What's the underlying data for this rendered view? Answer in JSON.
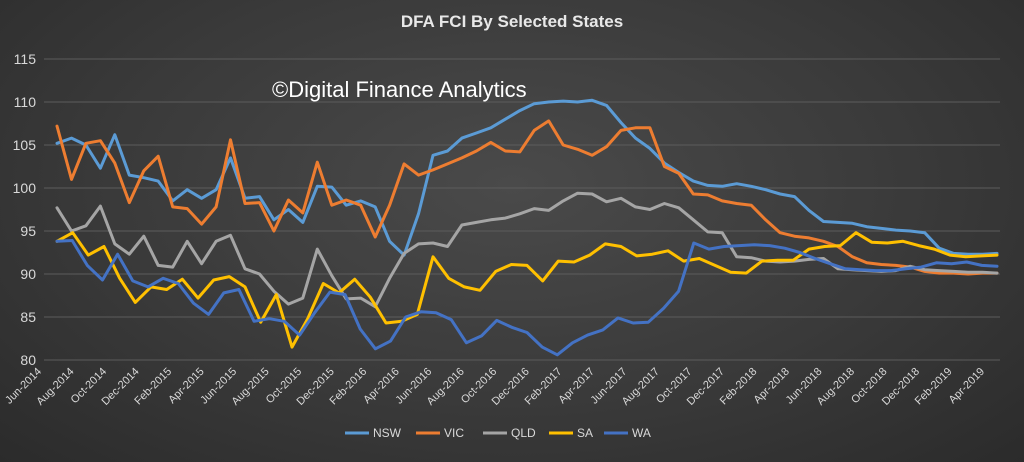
{
  "chart_data": {
    "type": "line",
    "title": "DFA FCI By Selected States",
    "watermark": "©Digital Finance Analytics",
    "xlabel": "",
    "ylabel": "",
    "ylim": [
      80,
      115
    ],
    "yticks": [
      80,
      85,
      90,
      95,
      100,
      105,
      110,
      115
    ],
    "grid": true,
    "legend_position": "bottom",
    "x_tick_labels": [
      "Jun-2014",
      "Aug-2014",
      "Oct-2014",
      "Dec-2014",
      "Feb-2015",
      "Apr-2015",
      "Jun-2015",
      "Aug-2015",
      "Oct-2015",
      "Dec-2015",
      "Feb-2016",
      "Apr-2016",
      "Jun-2016",
      "Aug-2016",
      "Oct-2016",
      "Dec-2016",
      "Feb-2017",
      "Apr-2017",
      "Jun-2017",
      "Aug-2017",
      "Oct-2017",
      "Dec-2017",
      "Feb-2018",
      "Apr-2018",
      "Jun-2018",
      "Aug-2018",
      "Oct-2018",
      "Dec-2018",
      "Feb-2019",
      "Apr-2019"
    ],
    "series": [
      {
        "name": "NSW",
        "color": "#5b9bd5",
        "values": [
          105.2,
          105.8,
          105.0,
          102.3,
          106.2,
          101.5,
          101.2,
          100.8,
          98.5,
          99.8,
          98.8,
          99.8,
          103.5,
          98.8,
          99.0,
          96.3,
          97.5,
          96.0,
          100.2,
          100.1,
          98.0,
          98.5,
          97.8,
          93.8,
          92.2,
          97.0,
          103.8,
          104.3,
          105.8,
          106.4,
          107.0,
          108.0,
          109.0,
          109.8,
          110.0,
          110.1,
          110.0,
          110.2,
          109.6,
          107.6,
          105.8,
          104.6,
          102.9,
          101.8,
          100.8,
          100.3,
          100.2,
          100.5,
          100.2,
          99.8,
          99.3,
          99.0,
          97.4,
          96.1,
          96.0,
          95.9,
          95.5,
          95.3,
          95.1,
          95.0,
          94.8,
          93.0,
          92.4,
          92.3,
          92.3,
          92.4
        ]
      },
      {
        "name": "VIC",
        "color": "#ed7d31",
        "values": [
          107.2,
          101.0,
          105.2,
          105.5,
          102.9,
          98.3,
          102.0,
          103.7,
          97.8,
          97.6,
          95.8,
          97.8,
          105.6,
          98.2,
          98.3,
          95.0,
          98.6,
          97.1,
          103.0,
          98.0,
          98.6,
          98.0,
          94.3,
          98.0,
          102.8,
          101.5,
          102.1,
          102.8,
          103.5,
          104.3,
          105.3,
          104.3,
          104.2,
          106.7,
          107.8,
          105.0,
          104.5,
          103.8,
          104.8,
          106.7,
          107.0,
          107.0,
          102.5,
          101.7,
          99.3,
          99.2,
          98.5,
          98.2,
          98.0,
          96.3,
          94.8,
          94.4,
          94.2,
          93.8,
          93.2,
          92.0,
          91.3,
          91.1,
          91.0,
          90.8,
          90.3,
          90.1,
          90.1,
          90.0,
          90.1,
          90.1
        ]
      },
      {
        "name": "QLD",
        "color": "#a5a5a5",
        "values": [
          97.7,
          95.0,
          95.6,
          97.9,
          93.5,
          92.3,
          94.4,
          91.0,
          90.8,
          93.8,
          91.2,
          93.8,
          94.5,
          90.6,
          90.0,
          88.0,
          86.5,
          87.2,
          92.9,
          89.8,
          87.1,
          87.2,
          86.2,
          89.5,
          92.4,
          93.5,
          93.6,
          93.2,
          95.7,
          96.0,
          96.3,
          96.5,
          97.0,
          97.6,
          97.4,
          98.5,
          99.4,
          99.3,
          98.4,
          98.8,
          97.8,
          97.5,
          98.2,
          97.7,
          96.3,
          94.9,
          94.8,
          92.0,
          91.9,
          91.5,
          91.4,
          91.5,
          91.7,
          91.8,
          90.6,
          90.5,
          90.4,
          90.3,
          90.4,
          90.9,
          90.5,
          90.4,
          90.3,
          90.2,
          90.2,
          90.1
        ]
      },
      {
        "name": "SA",
        "color": "#ffc000",
        "values": [
          93.8,
          94.8,
          92.2,
          93.2,
          89.5,
          86.7,
          88.5,
          88.2,
          89.4,
          87.2,
          89.3,
          89.7,
          88.5,
          84.4,
          87.6,
          81.5,
          84.8,
          88.9,
          87.8,
          89.4,
          87.3,
          84.3,
          84.5,
          85.3,
          92.0,
          89.5,
          88.5,
          88.1,
          90.3,
          91.1,
          91.0,
          89.2,
          91.5,
          91.4,
          92.2,
          93.5,
          93.2,
          92.1,
          92.3,
          92.7,
          91.5,
          91.8,
          91.0,
          90.2,
          90.1,
          91.5,
          91.6,
          91.6,
          92.9,
          93.2,
          93.3,
          94.8,
          93.7,
          93.6,
          93.8,
          93.3,
          92.9,
          92.2,
          92.0,
          92.1,
          92.2
        ]
      },
      {
        "name": "WA",
        "color": "#4472c4",
        "values": [
          93.8,
          93.9,
          91.0,
          89.3,
          92.3,
          89.2,
          88.5,
          89.5,
          88.9,
          86.6,
          85.3,
          87.8,
          88.2,
          84.5,
          84.8,
          84.5,
          82.9,
          85.5,
          87.9,
          87.6,
          83.6,
          81.3,
          82.2,
          85.0,
          85.6,
          85.5,
          84.7,
          82.0,
          82.8,
          84.6,
          83.8,
          83.2,
          81.5,
          80.6,
          82.0,
          82.9,
          83.5,
          84.9,
          84.3,
          84.4,
          86.0,
          88.0,
          93.6,
          92.9,
          93.2,
          93.3,
          93.4,
          93.3,
          93.0,
          92.5,
          91.8,
          91.2,
          90.6,
          90.5,
          90.4,
          90.4,
          90.6,
          90.8,
          91.3,
          91.2,
          91.4,
          91.0,
          90.9
        ]
      }
    ]
  }
}
